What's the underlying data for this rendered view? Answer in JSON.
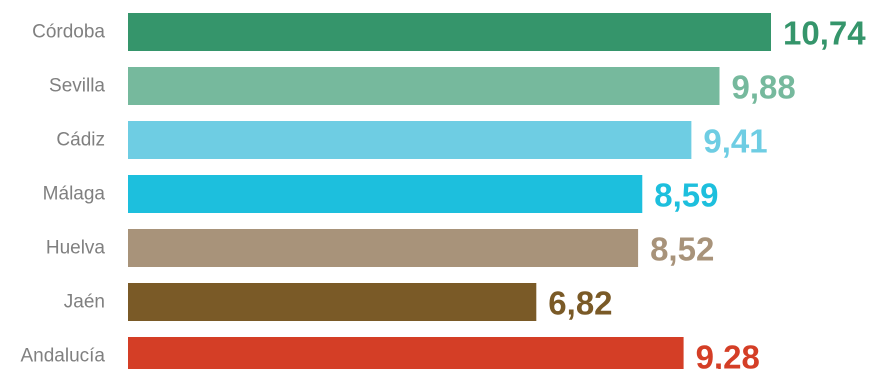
{
  "chart_data": {
    "type": "bar",
    "orientation": "horizontal",
    "categories": [
      "Córdoba",
      "Sevilla",
      "Cádiz",
      "Málaga",
      "Huelva",
      "Jaén",
      "Andalucía"
    ],
    "values": [
      10.74,
      9.88,
      9.41,
      8.59,
      8.52,
      6.82,
      9.28
    ],
    "value_labels": [
      "10,74",
      "9,88",
      "9,41",
      "8,59",
      "8,52",
      "6,82",
      "9,28"
    ],
    "colors": [
      "#35956b",
      "#76b99d",
      "#6ecde3",
      "#1dbfdd",
      "#a8937a",
      "#7a5a27",
      "#d43e26"
    ],
    "xlim": [
      0,
      10.74
    ],
    "grid": false,
    "legend": "none"
  }
}
